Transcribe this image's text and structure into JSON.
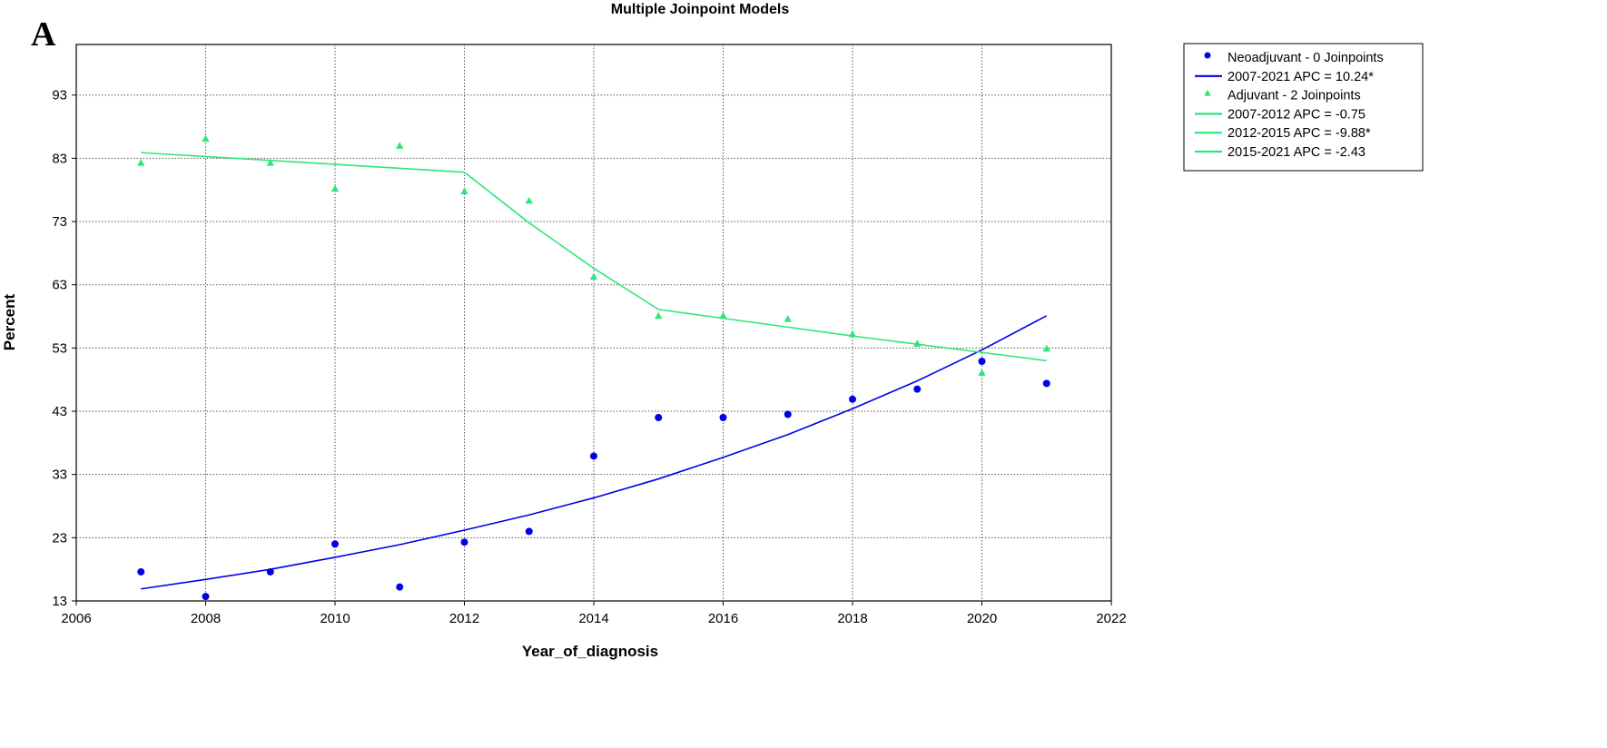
{
  "panel_letter": "A",
  "chart_data": {
    "type": "scatter",
    "title": "Multiple Joinpoint Models",
    "xlabel": "Year_of_diagnosis",
    "ylabel": "Percent",
    "xlim": [
      2006,
      2022
    ],
    "ylim": [
      13,
      101
    ],
    "x_ticks": [
      2006,
      2008,
      2010,
      2012,
      2014,
      2016,
      2018,
      2020,
      2022
    ],
    "y_ticks": [
      13,
      23,
      33,
      43,
      53,
      63,
      73,
      83,
      93
    ],
    "grid": true,
    "legend_position": "right, outside",
    "series": [
      {
        "name": "Neoadjuvant - 0 Joinpoints",
        "kind": "points",
        "marker": "circle",
        "color": "#0000e6",
        "x": [
          2007,
          2008,
          2009,
          2010,
          2011,
          2012,
          2013,
          2014,
          2015,
          2016,
          2017,
          2018,
          2019,
          2020,
          2021
        ],
        "y": [
          17.6,
          13.7,
          17.6,
          22.0,
          15.2,
          22.3,
          24.0,
          35.9,
          42.0,
          42.0,
          42.5,
          44.9,
          46.5,
          50.9,
          47.4
        ]
      },
      {
        "name": "2007-2021 APC  = 10.24*",
        "kind": "line",
        "color": "#0000e6",
        "x": [
          2007,
          2008,
          2009,
          2010,
          2011,
          2012,
          2013,
          2014,
          2015,
          2016,
          2017,
          2018,
          2019,
          2020,
          2021
        ],
        "y": [
          14.9,
          16.4,
          18.0,
          19.9,
          21.9,
          24.2,
          26.6,
          29.3,
          32.3,
          35.7,
          39.3,
          43.4,
          47.8,
          52.7,
          58.1
        ]
      },
      {
        "name": "Adjuvant - 2 Joinpoints",
        "kind": "points",
        "marker": "triangle",
        "color": "#2ee67a",
        "x": [
          2007,
          2008,
          2009,
          2010,
          2011,
          2012,
          2013,
          2014,
          2015,
          2016,
          2017,
          2018,
          2019,
          2020,
          2021
        ],
        "y": [
          82.3,
          86.1,
          82.3,
          78.2,
          85.0,
          77.8,
          76.3,
          64.3,
          58.1,
          58.1,
          57.6,
          55.2,
          53.7,
          49.1,
          52.9
        ]
      },
      {
        "name": "2007-2012 APC  = -0.75",
        "kind": "line",
        "color": "#2ee67a",
        "x": [
          2007,
          2012
        ],
        "y": [
          83.9,
          80.8
        ]
      },
      {
        "name": "2012-2015 APC  = -9.88*",
        "kind": "line",
        "color": "#2ee67a",
        "x": [
          2012,
          2013,
          2014,
          2015
        ],
        "y": [
          80.8,
          72.8,
          65.6,
          59.1
        ]
      },
      {
        "name": "2015-2021 APC  = -2.43",
        "kind": "line",
        "color": "#2ee67a",
        "x": [
          2015,
          2016,
          2017,
          2018,
          2019,
          2020,
          2021
        ],
        "y": [
          59.1,
          57.7,
          56.3,
          54.9,
          53.6,
          52.3,
          51.0
        ]
      }
    ]
  }
}
